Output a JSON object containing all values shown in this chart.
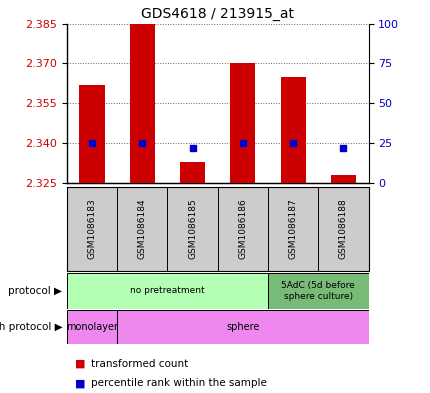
{
  "title": "GDS4618 / 213915_at",
  "samples": [
    "GSM1086183",
    "GSM1086184",
    "GSM1086185",
    "GSM1086186",
    "GSM1086187",
    "GSM1086188"
  ],
  "transformed_counts": [
    2.362,
    2.388,
    2.333,
    2.37,
    2.365,
    2.328
  ],
  "percentile_ranks": [
    25,
    25,
    22,
    25,
    25,
    22
  ],
  "ylim_left": [
    2.325,
    2.385
  ],
  "ylim_right": [
    0,
    100
  ],
  "yticks_left": [
    2.325,
    2.34,
    2.355,
    2.37,
    2.385
  ],
  "yticks_right": [
    0,
    25,
    50,
    75,
    100
  ],
  "bar_bottom": 2.325,
  "bar_color": "#cc0000",
  "percentile_color": "#0000cc",
  "protocol_groups": [
    {
      "label": "no pretreatment",
      "start": 0,
      "end": 4,
      "color": "#b3ffb3"
    },
    {
      "label": "5AdC (5d before\nsphere culture)",
      "start": 4,
      "end": 6,
      "color": "#77bb77"
    }
  ],
  "growth_groups": [
    {
      "label": "monolayer",
      "start": 0,
      "end": 1,
      "color": "#ee88ee"
    },
    {
      "label": "sphere",
      "start": 1,
      "end": 6,
      "color": "#ee88ee"
    }
  ],
  "sample_bg": "#cccccc",
  "bg_color": "#ffffff"
}
